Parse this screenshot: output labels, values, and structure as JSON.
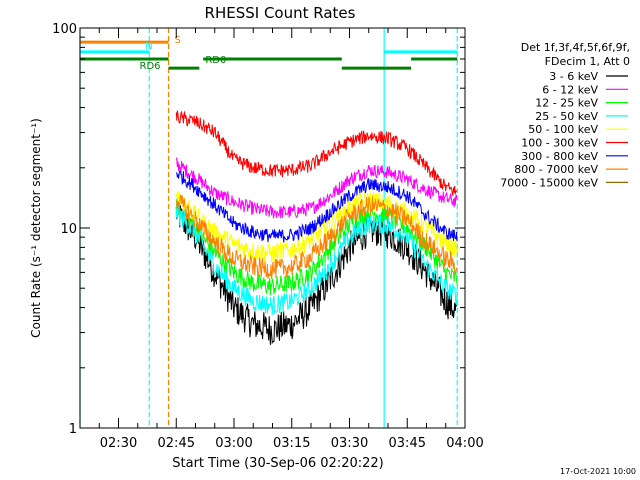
{
  "chart_data": {
    "type": "line",
    "title": "RHESSI Count Rates",
    "xlabel": "Start Time (30-Sep-06 02:20:22)",
    "ylabel": "Count Rate (s⁻¹ detector segment⁻¹)",
    "footer_date": "17-Oct-2021 10:00",
    "y_scale": "log",
    "ylim": [
      1,
      100
    ],
    "y_ticks": [
      {
        "value": 1,
        "label": "1"
      },
      {
        "value": 10,
        "label": "10"
      },
      {
        "value": 100,
        "label": "100"
      }
    ],
    "xlim": [
      "02:20",
      "04:00"
    ],
    "x_ticks": [
      {
        "value": "02:30",
        "label": "02:30"
      },
      {
        "value": "02:45",
        "label": "02:45"
      },
      {
        "value": "03:00",
        "label": "03:00"
      },
      {
        "value": "03:15",
        "label": "03:15"
      },
      {
        "value": "03:30",
        "label": "03:30"
      },
      {
        "value": "03:45",
        "label": "03:45"
      },
      {
        "value": "04:00",
        "label": "04:00"
      }
    ],
    "legend_header": [
      "Det 1f,3f,4f,5f,6f,9f,",
      "FDecim 1, Att 0"
    ],
    "legend_position": "right",
    "series": [
      {
        "name": "3 - 6 keV",
        "color": "#000000",
        "x": [
          "02:45",
          "02:50",
          "02:55",
          "03:00",
          "03:05",
          "03:10",
          "03:15",
          "03:20",
          "03:25",
          "03:30",
          "03:35",
          "03:40",
          "03:45",
          "03:50",
          "03:55",
          "03:58"
        ],
        "values": [
          12,
          9,
          6,
          4,
          3.3,
          3.1,
          3.3,
          4,
          5.5,
          8,
          9.8,
          9.5,
          8,
          6,
          4.3,
          3.8
        ]
      },
      {
        "name": "6 - 12 keV",
        "color": "#ff00ff",
        "x": [
          "02:45",
          "02:50",
          "02:55",
          "03:00",
          "03:05",
          "03:10",
          "03:15",
          "03:20",
          "03:25",
          "03:30",
          "03:35",
          "03:40",
          "03:45",
          "03:50",
          "03:55",
          "03:58"
        ],
        "values": [
          21,
          18,
          15,
          13.5,
          12.5,
          12,
          12,
          12.5,
          14.5,
          17.5,
          19.5,
          19,
          17.5,
          15.5,
          14,
          13.5
        ]
      },
      {
        "name": "12 - 25 keV",
        "color": "#00ff00",
        "x": [
          "02:45",
          "02:50",
          "02:55",
          "03:00",
          "03:05",
          "03:10",
          "03:15",
          "03:20",
          "03:25",
          "03:30",
          "03:35",
          "03:40",
          "03:45",
          "03:50",
          "03:55",
          "03:58"
        ],
        "values": [
          13,
          10,
          7.5,
          6,
          5.3,
          5.1,
          5.3,
          6,
          8,
          10.5,
          12,
          11.5,
          10,
          8,
          6,
          5.5
        ]
      },
      {
        "name": "25 - 50 keV",
        "color": "#00ffff",
        "x": [
          "02:45",
          "02:50",
          "02:55",
          "03:00",
          "03:05",
          "03:10",
          "03:15",
          "03:20",
          "03:25",
          "03:30",
          "03:35",
          "03:40",
          "03:45",
          "03:50",
          "03:55",
          "03:58"
        ],
        "values": [
          12,
          9.5,
          6.5,
          5,
          4.3,
          4.1,
          4.3,
          5,
          6.5,
          9,
          10.5,
          10.3,
          9,
          6.5,
          5,
          4.6
        ]
      },
      {
        "name": "50 - 100 keV",
        "color": "#ffff00",
        "x": [
          "02:45",
          "02:50",
          "02:55",
          "03:00",
          "03:05",
          "03:10",
          "03:15",
          "03:20",
          "03:25",
          "03:30",
          "03:35",
          "03:40",
          "03:45",
          "03:50",
          "03:55",
          "03:58"
        ],
        "values": [
          15,
          11.5,
          9.5,
          8.3,
          7.7,
          7.5,
          7.8,
          8.7,
          10.5,
          12.8,
          13.8,
          13.3,
          11.8,
          10,
          8.4,
          7.9
        ]
      },
      {
        "name": "100 - 300 keV",
        "color": "#ff0000",
        "x": [
          "02:45",
          "02:50",
          "02:55",
          "03:00",
          "03:05",
          "03:10",
          "03:15",
          "03:20",
          "03:25",
          "03:30",
          "03:35",
          "03:40",
          "03:45",
          "03:50",
          "03:55",
          "03:58"
        ],
        "values": [
          36,
          34,
          30,
          22,
          20,
          19.3,
          19.5,
          20.5,
          24,
          27,
          29,
          28,
          25,
          20,
          16,
          15
        ]
      },
      {
        "name": "300 - 800 keV",
        "color": "#0000ff",
        "x": [
          "02:45",
          "02:50",
          "02:55",
          "03:00",
          "03:05",
          "03:10",
          "03:15",
          "03:20",
          "03:25",
          "03:30",
          "03:35",
          "03:40",
          "03:45",
          "03:50",
          "03:55",
          "03:58"
        ],
        "values": [
          19,
          16,
          13,
          10.5,
          9.5,
          9.1,
          9.2,
          10,
          12,
          14.5,
          16.5,
          16,
          14.5,
          11.5,
          9.5,
          9
        ]
      },
      {
        "name": "800 - 7000 keV",
        "color": "#ff8000",
        "x": [
          "02:45",
          "02:50",
          "02:55",
          "03:00",
          "03:05",
          "03:10",
          "03:15",
          "03:20",
          "03:25",
          "03:30",
          "03:35",
          "03:40",
          "03:45",
          "03:50",
          "03:55",
          "03:58"
        ],
        "values": [
          14,
          11,
          8.5,
          7,
          6.4,
          6.2,
          6.4,
          7.2,
          9,
          11.5,
          13,
          12.5,
          11,
          8.5,
          7,
          6.5
        ]
      },
      {
        "name": "7000 - 15000 keV",
        "color": "#996600",
        "x": [],
        "values": []
      }
    ],
    "annotation_bars": [
      {
        "label": "S",
        "color": "#ff8000",
        "x_start": "02:20",
        "x_end": "02:43",
        "y": 85
      },
      {
        "label": "N",
        "color": "#00ffff",
        "x_start": "02:20",
        "x_end": "02:38",
        "y": 76
      },
      {
        "label": "",
        "color": "#00ffff",
        "x_start": "03:39",
        "x_end": "03:58",
        "y": 76
      },
      {
        "label": "RD6",
        "color": "#008000",
        "x_start": "02:20",
        "x_end": "02:43",
        "y": 70
      },
      {
        "label": "RD0",
        "color": "#008000",
        "x_start": "02:43",
        "x_end": "02:51",
        "y": 63
      },
      {
        "label": "",
        "color": "#008000",
        "x_start": "02:52",
        "x_end": "03:28",
        "y": 70
      },
      {
        "label": "",
        "color": "#008000",
        "x_start": "03:28",
        "x_end": "03:46",
        "y": 63
      },
      {
        "label": "",
        "color": "#008000",
        "x_start": "03:46",
        "x_end": "03:58",
        "y": 70
      }
    ],
    "vertical_lines": [
      {
        "x": "02:20",
        "color": "#00ffff",
        "style": "solid"
      },
      {
        "x": "02:38",
        "color": "#00ffff",
        "style": "dashed"
      },
      {
        "x": "02:43",
        "color": "#ff8000",
        "style": "dashed"
      },
      {
        "x": "03:39",
        "color": "#00ffff",
        "style": "solid"
      },
      {
        "x": "03:58",
        "color": "#00ffff",
        "style": "dashed"
      }
    ]
  }
}
